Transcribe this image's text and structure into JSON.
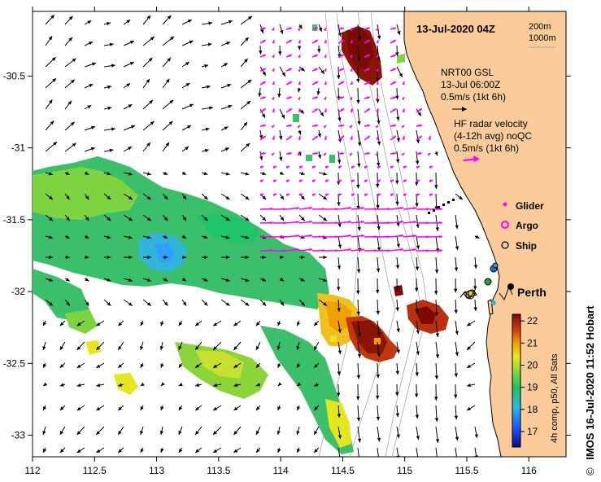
{
  "map": {
    "timestamp": "13-Jul-2020 04Z",
    "depth_labels": [
      "200m",
      "1000m"
    ],
    "city_label": "Perth",
    "model_legend": {
      "line1": "NRT00 GSL",
      "line2": "13-Jul 06:00Z",
      "line3": "0.5m/s (1kt 6h)"
    },
    "radar_legend": {
      "line1": "HF radar velocity",
      "line2": "(4-12h avg) noQC",
      "line3": "0.5m/s (1kt 6h)"
    },
    "symbols": [
      {
        "label": "Glider",
        "color": "#ff00ff"
      },
      {
        "label": "Argo",
        "color": "#ff00ff"
      },
      {
        "label": "Ship",
        "color": "#000000"
      }
    ],
    "colorbar": {
      "label": "4h comp, p50, All Sats",
      "ticks": [
        "22",
        "21",
        "20",
        "19",
        "18",
        "17"
      ],
      "min": 16.3,
      "max": 22.3
    },
    "credit": {
      "symbol": "©",
      "text": "IMOS 16-Jul-2020 11:52 Hobart"
    },
    "axes": {
      "x_ticks": [
        "112",
        "112.5",
        "113",
        "113.5",
        "114",
        "114.5",
        "115",
        "115.5",
        "116"
      ],
      "y_ticks": [
        "-30.5",
        "-31",
        "-31.5",
        "-32",
        "-32.5",
        "-33"
      ],
      "lon_range": [
        112,
        116.3
      ],
      "lat_range": [
        -33.15,
        -30.05
      ]
    },
    "colors": {
      "land": "#fbcb9a",
      "model_arrow": "#000000",
      "radar_arrow": "#ff00ff"
    }
  }
}
